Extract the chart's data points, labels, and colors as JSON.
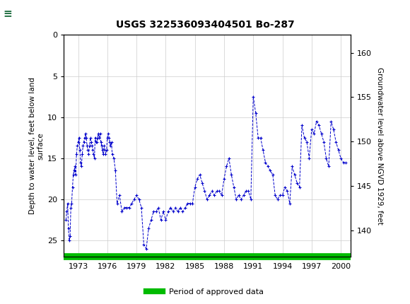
{
  "title": "USGS 322536093404501 Bo-287",
  "ylabel_left": "Depth to water level, feet below land\nsurface",
  "ylabel_right": "Groundwater level above NGVD 1929, feet",
  "ylim_left": [
    27,
    0
  ],
  "ylim_right": [
    137,
    162
  ],
  "xlim": [
    1971.5,
    2001.0
  ],
  "xticks": [
    1973,
    1976,
    1979,
    1982,
    1985,
    1988,
    1991,
    1994,
    1997,
    2000
  ],
  "yticks_left": [
    0,
    5,
    10,
    15,
    20,
    25
  ],
  "yticks_right": [
    160,
    155,
    150,
    145,
    140
  ],
  "header_color": "#1a6b3c",
  "grid_color": "#cccccc",
  "line_color": "#0000cc",
  "approved_bar_color": "#00bb00",
  "legend_label": "Period of approved data",
  "background_color": "#ffffff",
  "plot_bg_color": "#ffffff",
  "data_x": [
    1971.75,
    1971.83,
    1971.92,
    1972.0,
    1972.08,
    1972.17,
    1972.25,
    1972.33,
    1972.42,
    1972.5,
    1972.58,
    1972.67,
    1972.75,
    1972.83,
    1972.92,
    1973.0,
    1973.08,
    1973.17,
    1973.25,
    1973.33,
    1973.42,
    1973.5,
    1973.58,
    1973.67,
    1973.75,
    1973.83,
    1973.92,
    1974.0,
    1974.08,
    1974.17,
    1974.25,
    1974.33,
    1974.42,
    1974.5,
    1974.58,
    1974.67,
    1974.75,
    1974.83,
    1974.92,
    1975.0,
    1975.08,
    1975.17,
    1975.25,
    1975.33,
    1975.42,
    1975.5,
    1975.58,
    1975.67,
    1975.75,
    1975.83,
    1975.92,
    1976.0,
    1976.08,
    1976.17,
    1976.25,
    1976.33,
    1976.42,
    1976.5,
    1976.67,
    1976.83,
    1977.0,
    1977.25,
    1977.5,
    1977.75,
    1978.0,
    1978.25,
    1978.5,
    1978.75,
    1979.0,
    1979.25,
    1979.5,
    1979.75,
    1980.0,
    1980.25,
    1980.5,
    1980.75,
    1981.0,
    1981.25,
    1981.5,
    1981.75,
    1982.0,
    1982.25,
    1982.5,
    1982.75,
    1983.0,
    1983.25,
    1983.5,
    1983.75,
    1984.0,
    1984.25,
    1984.5,
    1984.75,
    1985.0,
    1985.25,
    1985.5,
    1985.75,
    1986.0,
    1986.25,
    1986.5,
    1986.75,
    1987.0,
    1987.25,
    1987.5,
    1987.75,
    1988.0,
    1988.25,
    1988.5,
    1988.75,
    1989.0,
    1989.25,
    1989.5,
    1989.75,
    1990.0,
    1990.25,
    1990.5,
    1990.75,
    1991.0,
    1991.25,
    1991.5,
    1991.75,
    1992.0,
    1992.25,
    1992.5,
    1992.75,
    1993.0,
    1993.25,
    1993.5,
    1993.75,
    1994.0,
    1994.25,
    1994.5,
    1994.75,
    1995.0,
    1995.25,
    1995.5,
    1995.75,
    1996.0,
    1996.25,
    1996.5,
    1996.75,
    1997.0,
    1997.25,
    1997.5,
    1997.75,
    1998.0,
    1998.25,
    1998.5,
    1998.75,
    1999.0,
    1999.25,
    1999.5,
    1999.75,
    2000.0,
    2000.25,
    2000.5
  ],
  "data_y": [
    22.5,
    21.5,
    20.5,
    23.5,
    25.0,
    24.5,
    21.0,
    20.5,
    18.5,
    17.0,
    16.5,
    16.0,
    17.0,
    14.5,
    13.5,
    13.0,
    12.5,
    14.0,
    15.5,
    16.0,
    14.5,
    13.5,
    13.0,
    12.5,
    12.0,
    12.5,
    13.5,
    14.0,
    14.5,
    13.5,
    12.5,
    13.0,
    13.5,
    14.0,
    14.5,
    15.0,
    12.5,
    13.0,
    13.0,
    12.5,
    12.0,
    12.5,
    12.0,
    13.0,
    13.5,
    14.0,
    14.5,
    13.5,
    14.0,
    14.5,
    14.0,
    12.5,
    12.0,
    12.5,
    13.0,
    13.5,
    13.0,
    14.5,
    15.0,
    16.5,
    20.5,
    19.5,
    21.5,
    21.0,
    21.0,
    21.0,
    20.5,
    20.0,
    19.5,
    20.0,
    21.0,
    25.5,
    26.0,
    23.5,
    22.5,
    21.5,
    21.5,
    21.0,
    22.5,
    21.5,
    22.5,
    21.5,
    21.0,
    21.5,
    21.0,
    21.5,
    21.0,
    21.5,
    21.0,
    20.5,
    20.5,
    20.5,
    18.5,
    17.5,
    17.0,
    18.0,
    19.0,
    20.0,
    19.5,
    19.0,
    19.5,
    19.0,
    19.0,
    19.5,
    17.5,
    16.0,
    15.0,
    17.0,
    18.5,
    20.0,
    19.5,
    20.0,
    19.5,
    19.0,
    19.0,
    20.0,
    7.5,
    9.5,
    12.5,
    12.5,
    14.0,
    15.5,
    16.0,
    16.5,
    17.0,
    19.5,
    20.0,
    19.5,
    19.5,
    18.5,
    19.0,
    20.5,
    16.0,
    17.0,
    18.0,
    18.5,
    11.0,
    12.5,
    13.0,
    15.0,
    11.5,
    12.0,
    10.5,
    11.0,
    12.0,
    13.0,
    15.0,
    16.0,
    10.5,
    11.5,
    13.0,
    14.0,
    15.0,
    15.5,
    15.5
  ]
}
